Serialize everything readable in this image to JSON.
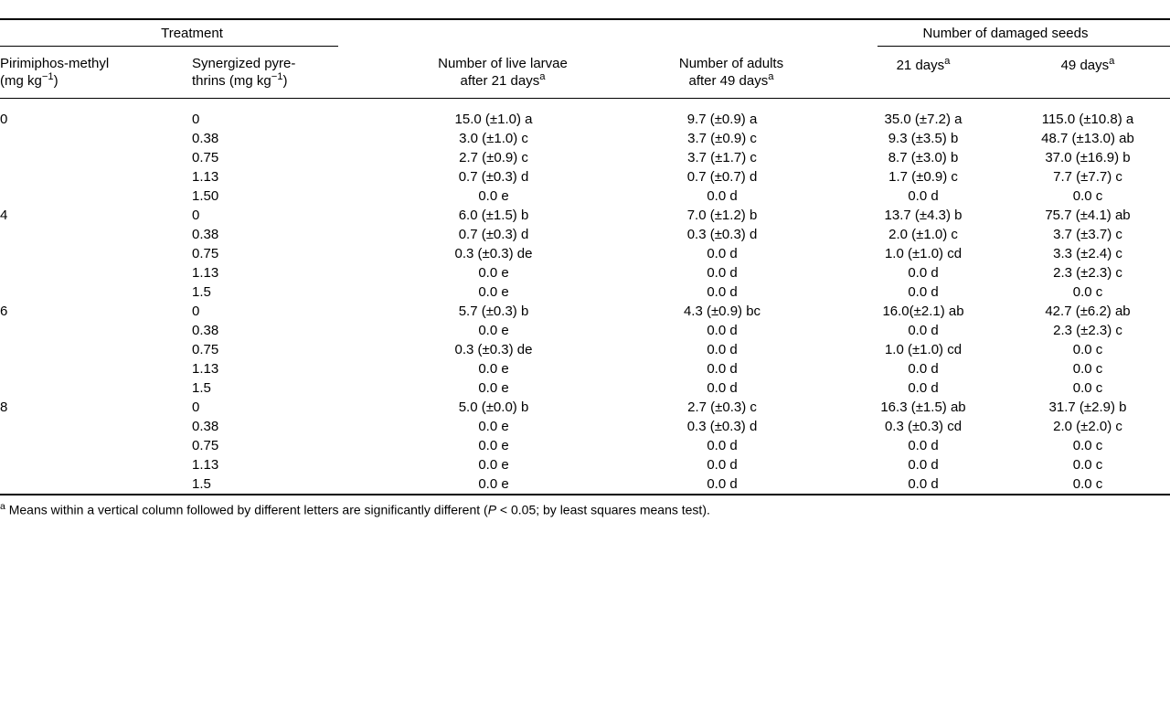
{
  "headers": {
    "treatment": "Treatment",
    "damaged": "Number of damaged seeds",
    "pm_line1": "Pirimiphos-methyl",
    "pm_line2_pre": "(mg kg",
    "pm_line2_sup": "−1",
    "pm_line2_post": ")",
    "sp_line1": "Synergized pyre-",
    "sp_line2_pre": "thrins (mg kg",
    "sp_line2_sup": "−1",
    "sp_line2_post": ")",
    "larvae_line1": "Number of live larvae",
    "larvae_line2": "after 21 days",
    "adults_line1": "Number of adults",
    "adults_line2": "after 49 days",
    "d21": "21 days",
    "d49": "49 days",
    "sup_a": "a"
  },
  "rows": [
    {
      "pm": "0",
      "sp": "0",
      "larvae": "15.0 (±1.0) a",
      "adults": "9.7 (±0.9) a",
      "d21": "35.0 (±7.2) a",
      "d49": "115.0 (±10.8) a"
    },
    {
      "pm": "",
      "sp": "0.38",
      "larvae": "3.0 (±1.0) c",
      "adults": "3.7 (±0.9) c",
      "d21": "9.3 (±3.5) b",
      "d49": "48.7 (±13.0) ab"
    },
    {
      "pm": "",
      "sp": "0.75",
      "larvae": "2.7 (±0.9) c",
      "adults": "3.7 (±1.7) c",
      "d21": "8.7 (±3.0) b",
      "d49": "37.0 (±16.9) b"
    },
    {
      "pm": "",
      "sp": "1.13",
      "larvae": "0.7 (±0.3) d",
      "adults": "0.7 (±0.7) d",
      "d21": "1.7 (±0.9) c",
      "d49": "7.7 (±7.7) c"
    },
    {
      "pm": "",
      "sp": "1.50",
      "larvae": "0.0 e",
      "adults": "0.0 d",
      "d21": "0.0 d",
      "d49": "0.0 c"
    },
    {
      "pm": "4",
      "sp": "0",
      "larvae": "6.0 (±1.5) b",
      "adults": "7.0 (±1.2) b",
      "d21": "13.7 (±4.3) b",
      "d49": "75.7 (±4.1) ab"
    },
    {
      "pm": "",
      "sp": "0.38",
      "larvae": "0.7 (±0.3) d",
      "adults": "0.3 (±0.3) d",
      "d21": "2.0 (±1.0) c",
      "d49": "3.7 (±3.7) c"
    },
    {
      "pm": "",
      "sp": "0.75",
      "larvae": "0.3 (±0.3) de",
      "adults": "0.0 d",
      "d21": "1.0 (±1.0) cd",
      "d49": "3.3 (±2.4) c"
    },
    {
      "pm": "",
      "sp": "1.13",
      "larvae": "0.0 e",
      "adults": "0.0 d",
      "d21": "0.0 d",
      "d49": "2.3 (±2.3) c"
    },
    {
      "pm": "",
      "sp": "1.5",
      "larvae": "0.0 e",
      "adults": "0.0 d",
      "d21": "0.0 d",
      "d49": "0.0 c"
    },
    {
      "pm": "6",
      "sp": "0",
      "larvae": "5.7 (±0.3) b",
      "adults": "4.3 (±0.9) bc",
      "d21": "16.0(±2.1) ab",
      "d49": "42.7 (±6.2) ab"
    },
    {
      "pm": "",
      "sp": "0.38",
      "larvae": "0.0 e",
      "adults": "0.0 d",
      "d21": "0.0 d",
      "d49": "2.3 (±2.3) c"
    },
    {
      "pm": "",
      "sp": "0.75",
      "larvae": "0.3 (±0.3) de",
      "adults": "0.0 d",
      "d21": "1.0 (±1.0) cd",
      "d49": "0.0 c"
    },
    {
      "pm": "",
      "sp": "1.13",
      "larvae": "0.0 e",
      "adults": "0.0 d",
      "d21": "0.0 d",
      "d49": "0.0 c"
    },
    {
      "pm": "",
      "sp": "1.5",
      "larvae": "0.0 e",
      "adults": "0.0 d",
      "d21": "0.0 d",
      "d49": "0.0 c"
    },
    {
      "pm": "8",
      "sp": "0",
      "larvae": "5.0 (±0.0) b",
      "adults": "2.7 (±0.3) c",
      "d21": "16.3 (±1.5) ab",
      "d49": "31.7 (±2.9) b"
    },
    {
      "pm": "",
      "sp": "0.38",
      "larvae": "0.0 e",
      "adults": "0.3 (±0.3) d",
      "d21": "0.3 (±0.3) cd",
      "d49": "2.0 (±2.0) c"
    },
    {
      "pm": "",
      "sp": "0.75",
      "larvae": "0.0 e",
      "adults": "0.0 d",
      "d21": "0.0 d",
      "d49": "0.0 c"
    },
    {
      "pm": "",
      "sp": "1.13",
      "larvae": "0.0 e",
      "adults": "0.0 d",
      "d21": "0.0 d",
      "d49": "0.0 c"
    },
    {
      "pm": "",
      "sp": "1.5",
      "larvae": "0.0 e",
      "adults": "0.0 d",
      "d21": "0.0 d",
      "d49": "0.0 c"
    }
  ],
  "footnote": {
    "sup": "a",
    "text_pre": " Means within a vertical column followed by different letters are significantly different (",
    "p": "P",
    "text_mid": " < 0.05; by least squares means test).",
    "text_post": ""
  }
}
